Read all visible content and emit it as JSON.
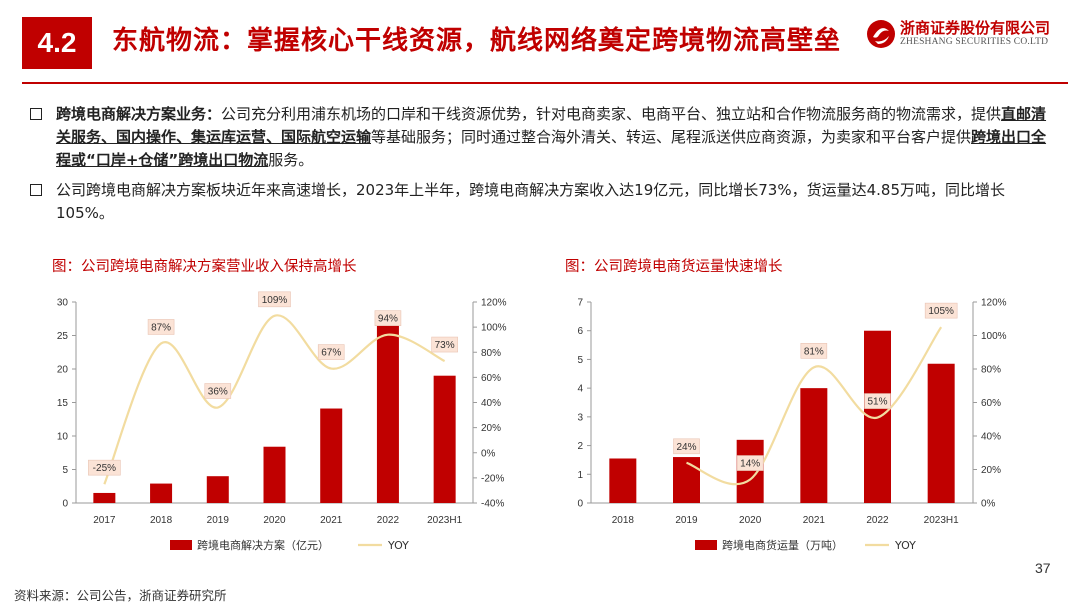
{
  "header": {
    "section_number": "4.2",
    "title": "东航物流：掌握核心干线资源，航线网络奠定跨境物流高壁垒",
    "logo_cn": "浙商证券股份有限公司",
    "logo_en": "ZHESHANG SECURITIES CO.LTD"
  },
  "bullets": {
    "b1": {
      "lead": "跨境电商解决方案业务：",
      "t1": "公司充分利用浦东机场的口岸和干线资源优势，针对电商卖家、电商平台、独立站和合作物流服务商的物流需求，提供",
      "bold1": "直邮清关服务、国内操作、集运库运营、国际航空运输",
      "t2": "等基础服务；同时通过整合海外清关、转运、尾程派送供应商资源，为卖家和平台客户提供",
      "bold2": "跨境出口全程或“口岸+仓储”跨境出口物流",
      "t3": "服务。"
    },
    "b2": {
      "text": "公司跨境电商解决方案板块近年来高速增长，2023年上半年，跨境电商解决方案收入达19亿元，同比增长73%，货运量达4.85万吨，同比增长105%。"
    }
  },
  "chart_titles": {
    "left": "图：公司跨境电商解决方案营业收入保持高增长",
    "right": "图：公司跨境电商货运量快速增长"
  },
  "chart_data": [
    {
      "type": "bar",
      "categories": [
        "2017",
        "2018",
        "2019",
        "2020",
        "2021",
        "2022",
        "2023H1"
      ],
      "series": [
        {
          "name": "跨境电商解决方案（亿元）",
          "type": "bar",
          "axis": "left",
          "values": [
            1.5,
            2.9,
            4.0,
            8.4,
            14.1,
            26.5,
            19.0
          ]
        },
        {
          "name": "YOY",
          "type": "line",
          "axis": "right",
          "values": [
            -25,
            87,
            36,
            109,
            67,
            94,
            73
          ],
          "labels": [
            "-25%",
            "87%",
            "36%",
            "109%",
            "67%",
            "94%",
            "73%"
          ]
        }
      ],
      "left_axis": {
        "ylim": [
          0,
          30
        ],
        "ticks": [
          "0",
          "5",
          "10",
          "15",
          "20",
          "25",
          "30"
        ]
      },
      "right_axis": {
        "ylim": [
          -40,
          120
        ],
        "ticks": [
          "-40%",
          "-20%",
          "0%",
          "20%",
          "40%",
          "60%",
          "80%",
          "100%",
          "120%"
        ]
      },
      "colors": {
        "bar": "#c00000",
        "line": "#f2dca0",
        "label_bg": "#fbe3d6"
      },
      "legend": "bottom"
    },
    {
      "type": "bar",
      "categories": [
        "2018",
        "2019",
        "2020",
        "2021",
        "2022",
        "2023H1"
      ],
      "series": [
        {
          "name": "跨境电商货运量（万吨）",
          "type": "bar",
          "axis": "left",
          "values": [
            1.55,
            1.6,
            2.2,
            4.0,
            6.0,
            4.85
          ]
        },
        {
          "name": "YOY",
          "type": "line",
          "axis": "right",
          "values": [
            null,
            24,
            14,
            81,
            51,
            105
          ],
          "labels": [
            "",
            "24%",
            "14%",
            "81%",
            "51%",
            "105%"
          ]
        }
      ],
      "left_axis": {
        "ylim": [
          0,
          7
        ],
        "ticks": [
          "0",
          "1",
          "2",
          "3",
          "4",
          "5",
          "6",
          "7"
        ]
      },
      "right_axis": {
        "ylim": [
          0,
          120
        ],
        "ticks": [
          "0%",
          "20%",
          "40%",
          "60%",
          "80%",
          "100%",
          "120%"
        ]
      },
      "colors": {
        "bar": "#c00000",
        "line": "#f2dca0",
        "label_bg": "#fbe3d6"
      },
      "legend": "bottom"
    }
  ],
  "footer": {
    "page_number": "37",
    "source": "资料来源：公司公告，浙商证券研究所"
  }
}
